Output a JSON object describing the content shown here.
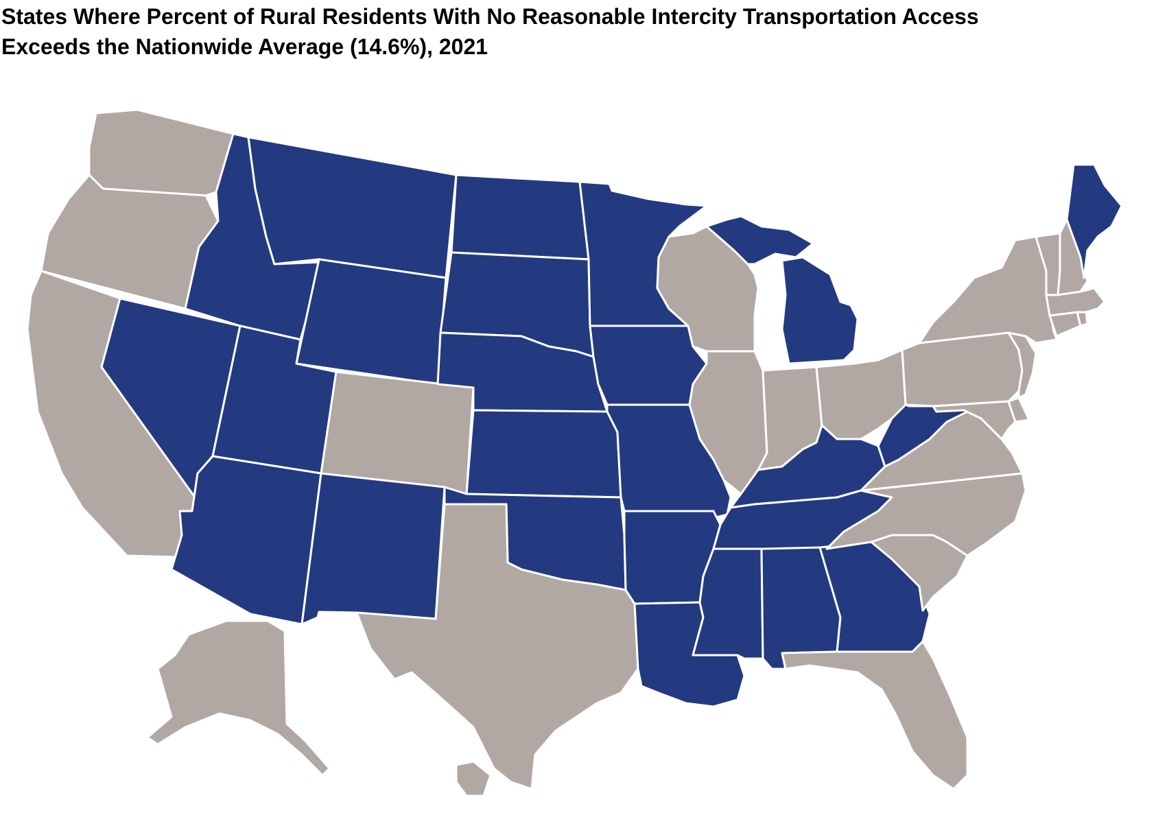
{
  "title_line1": "States Where Percent of Rural Residents With No Reasonable Intercity Transportation Access",
  "title_line2": "Exceeds the Nationwide Average (14.6%), 2021",
  "colors": {
    "exceeds": "#243a80",
    "not_exceeds": "#b1a8a4",
    "border": "#ffffff"
  },
  "states": [
    {
      "code": "WA",
      "exceeds": false
    },
    {
      "code": "OR",
      "exceeds": false
    },
    {
      "code": "CA",
      "exceeds": false
    },
    {
      "code": "NV",
      "exceeds": true
    },
    {
      "code": "ID",
      "exceeds": true
    },
    {
      "code": "MT",
      "exceeds": true
    },
    {
      "code": "WY",
      "exceeds": true
    },
    {
      "code": "UT",
      "exceeds": true
    },
    {
      "code": "CO",
      "exceeds": false
    },
    {
      "code": "AZ",
      "exceeds": true
    },
    {
      "code": "NM",
      "exceeds": true
    },
    {
      "code": "ND",
      "exceeds": true
    },
    {
      "code": "SD",
      "exceeds": true
    },
    {
      "code": "NE",
      "exceeds": true
    },
    {
      "code": "KS",
      "exceeds": true
    },
    {
      "code": "OK",
      "exceeds": true
    },
    {
      "code": "TX",
      "exceeds": false
    },
    {
      "code": "MN",
      "exceeds": true
    },
    {
      "code": "IA",
      "exceeds": true
    },
    {
      "code": "MO",
      "exceeds": true
    },
    {
      "code": "AR",
      "exceeds": true
    },
    {
      "code": "LA",
      "exceeds": true
    },
    {
      "code": "WI",
      "exceeds": false
    },
    {
      "code": "IL",
      "exceeds": false
    },
    {
      "code": "MI",
      "exceeds": true
    },
    {
      "code": "IN",
      "exceeds": false
    },
    {
      "code": "OH",
      "exceeds": false
    },
    {
      "code": "KY",
      "exceeds": true
    },
    {
      "code": "TN",
      "exceeds": true
    },
    {
      "code": "MS",
      "exceeds": true
    },
    {
      "code": "AL",
      "exceeds": true
    },
    {
      "code": "GA",
      "exceeds": true
    },
    {
      "code": "FL",
      "exceeds": false
    },
    {
      "code": "SC",
      "exceeds": false
    },
    {
      "code": "NC",
      "exceeds": false
    },
    {
      "code": "VA",
      "exceeds": false
    },
    {
      "code": "WV",
      "exceeds": true
    },
    {
      "code": "MD",
      "exceeds": false
    },
    {
      "code": "DE",
      "exceeds": false
    },
    {
      "code": "PA",
      "exceeds": false
    },
    {
      "code": "NJ",
      "exceeds": false
    },
    {
      "code": "NY",
      "exceeds": false
    },
    {
      "code": "CT",
      "exceeds": false
    },
    {
      "code": "RI",
      "exceeds": false
    },
    {
      "code": "MA",
      "exceeds": false
    },
    {
      "code": "VT",
      "exceeds": false
    },
    {
      "code": "NH",
      "exceeds": false
    },
    {
      "code": "ME",
      "exceeds": true
    },
    {
      "code": "AK",
      "exceeds": false
    },
    {
      "code": "HI",
      "exceeds": false
    }
  ]
}
